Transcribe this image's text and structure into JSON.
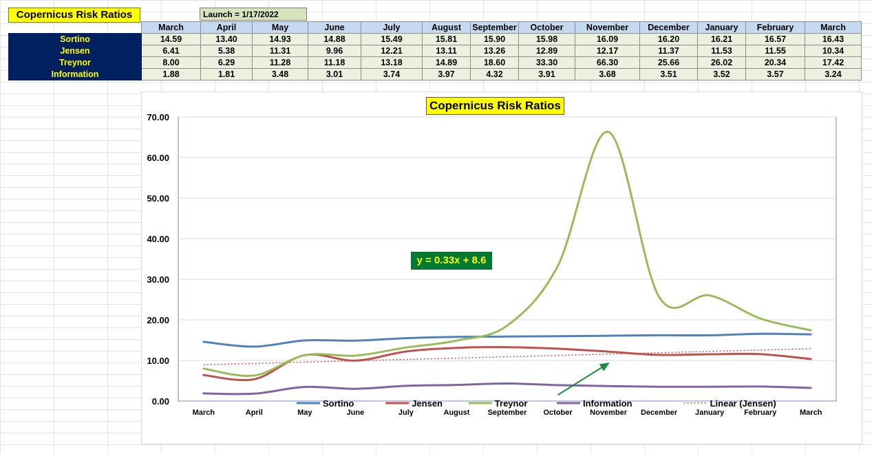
{
  "sheet": {
    "title": "Copernicus Risk Ratios",
    "launch": "Launch = 1/17/2022",
    "months": [
      "March",
      "April",
      "May",
      "June",
      "July",
      "August",
      "September",
      "October",
      "November",
      "December",
      "January",
      "February",
      "March"
    ],
    "rows": [
      {
        "label": "Sortino",
        "values": [
          "14.59",
          "13.40",
          "14.93",
          "14.88",
          "15.49",
          "15.81",
          "15.90",
          "15.98",
          "16.09",
          "16.20",
          "16.21",
          "16.57",
          "16.43"
        ]
      },
      {
        "label": "Jensen",
        "values": [
          "6.41",
          "5.38",
          "11.31",
          "9.96",
          "12.21",
          "13.11",
          "13.26",
          "12.89",
          "12.17",
          "11.37",
          "11.53",
          "11.55",
          "10.34"
        ]
      },
      {
        "label": "Treynor",
        "values": [
          "8.00",
          "6.29",
          "11.28",
          "11.18",
          "13.18",
          "14.89",
          "18.60",
          "33.30",
          "66.30",
          "25.66",
          "26.02",
          "20.34",
          "17.42"
        ]
      },
      {
        "label": "Information",
        "values": [
          "1.88",
          "1.81",
          "3.48",
          "3.01",
          "3.74",
          "3.97",
          "4.32",
          "3.91",
          "3.68",
          "3.51",
          "3.52",
          "3.57",
          "3.24"
        ]
      }
    ]
  },
  "chart_data": {
    "type": "line",
    "title": "Copernicus Risk Ratios",
    "categories": [
      "March",
      "April",
      "May",
      "June",
      "July",
      "August",
      "September",
      "October",
      "November",
      "December",
      "January",
      "February",
      "March"
    ],
    "series": [
      {
        "name": "Sortino",
        "color": "#4f81bd",
        "values": [
          14.59,
          13.4,
          14.93,
          14.88,
          15.49,
          15.81,
          15.9,
          15.98,
          16.09,
          16.2,
          16.21,
          16.57,
          16.43
        ]
      },
      {
        "name": "Jensen",
        "color": "#c0504d",
        "values": [
          6.41,
          5.38,
          11.31,
          9.96,
          12.21,
          13.11,
          13.26,
          12.89,
          12.17,
          11.37,
          11.53,
          11.55,
          10.34
        ]
      },
      {
        "name": "Treynor",
        "color": "#9bbb59",
        "values": [
          8.0,
          6.29,
          11.28,
          11.18,
          13.18,
          14.89,
          18.6,
          33.3,
          66.3,
          25.66,
          26.02,
          20.34,
          17.42
        ]
      },
      {
        "name": "Information",
        "color": "#8064a2",
        "values": [
          1.88,
          1.81,
          3.48,
          3.01,
          3.74,
          3.97,
          4.32,
          3.91,
          3.68,
          3.51,
          3.52,
          3.57,
          3.24
        ]
      }
    ],
    "trendline": {
      "name": "Linear (Jensen)",
      "slope": 0.33,
      "intercept": 8.6,
      "color": "#c0504d"
    },
    "equation": "y = 0.33x + 8.6",
    "ylim": [
      0,
      70
    ],
    "yticks": [
      "0.00",
      "10.00",
      "20.00",
      "30.00",
      "40.00",
      "50.00",
      "60.00",
      "70.00"
    ],
    "grid": true,
    "legend": "bottom",
    "legend_entries": [
      "Sortino",
      "Jensen",
      "Treynor",
      "Information",
      "Linear (Jensen)"
    ],
    "annotation": {
      "type": "arrow",
      "color": "#1e8a3c",
      "from": {
        "x": "October",
        "y": 1.5
      },
      "to": {
        "x": "November",
        "y": 9.3
      }
    }
  }
}
